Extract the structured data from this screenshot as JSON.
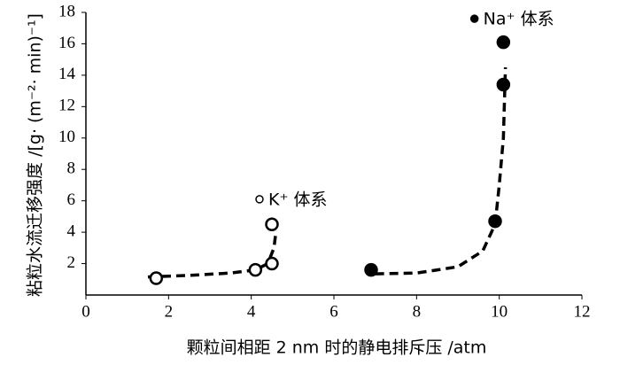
{
  "chart_data": {
    "type": "scatter",
    "xlabel": "颗粒间相距 2 nm 时的静电排斥压 /atm",
    "ylabel": "粘粒水流迁移强度 /[g· (m⁻²· min)⁻¹]",
    "xlim": [
      0,
      12
    ],
    "xticks": [
      0,
      2,
      4,
      6,
      8,
      10,
      12
    ],
    "ylim": [
      0,
      18
    ],
    "yticks": [
      2,
      4,
      6,
      8,
      10,
      12,
      14,
      16,
      18
    ],
    "series": [
      {
        "name": "K⁺ 体系",
        "marker": "open",
        "color": "#000000",
        "x": [
          1.7,
          4.1,
          4.5,
          4.5
        ],
        "values": [
          1.07,
          1.6,
          2.0,
          4.5
        ]
      },
      {
        "name": "Na⁺ 体系",
        "marker": "filled",
        "color": "#000000",
        "x": [
          6.9,
          9.9,
          10.1,
          10.1
        ],
        "values": [
          1.6,
          4.7,
          13.4,
          16.1
        ]
      }
    ],
    "fits": [
      {
        "x": [
          1.5,
          2.5,
          3.5,
          4.1,
          4.4,
          4.55,
          4.6
        ],
        "values": [
          1.15,
          1.25,
          1.4,
          1.6,
          2.0,
          3.0,
          4.1
        ]
      },
      {
        "x": [
          7.0,
          8.0,
          9.0,
          9.6,
          9.9,
          10.0,
          10.1,
          10.15
        ],
        "values": [
          1.35,
          1.4,
          1.8,
          2.8,
          4.5,
          7.0,
          10.0,
          14.5
        ]
      }
    ]
  }
}
